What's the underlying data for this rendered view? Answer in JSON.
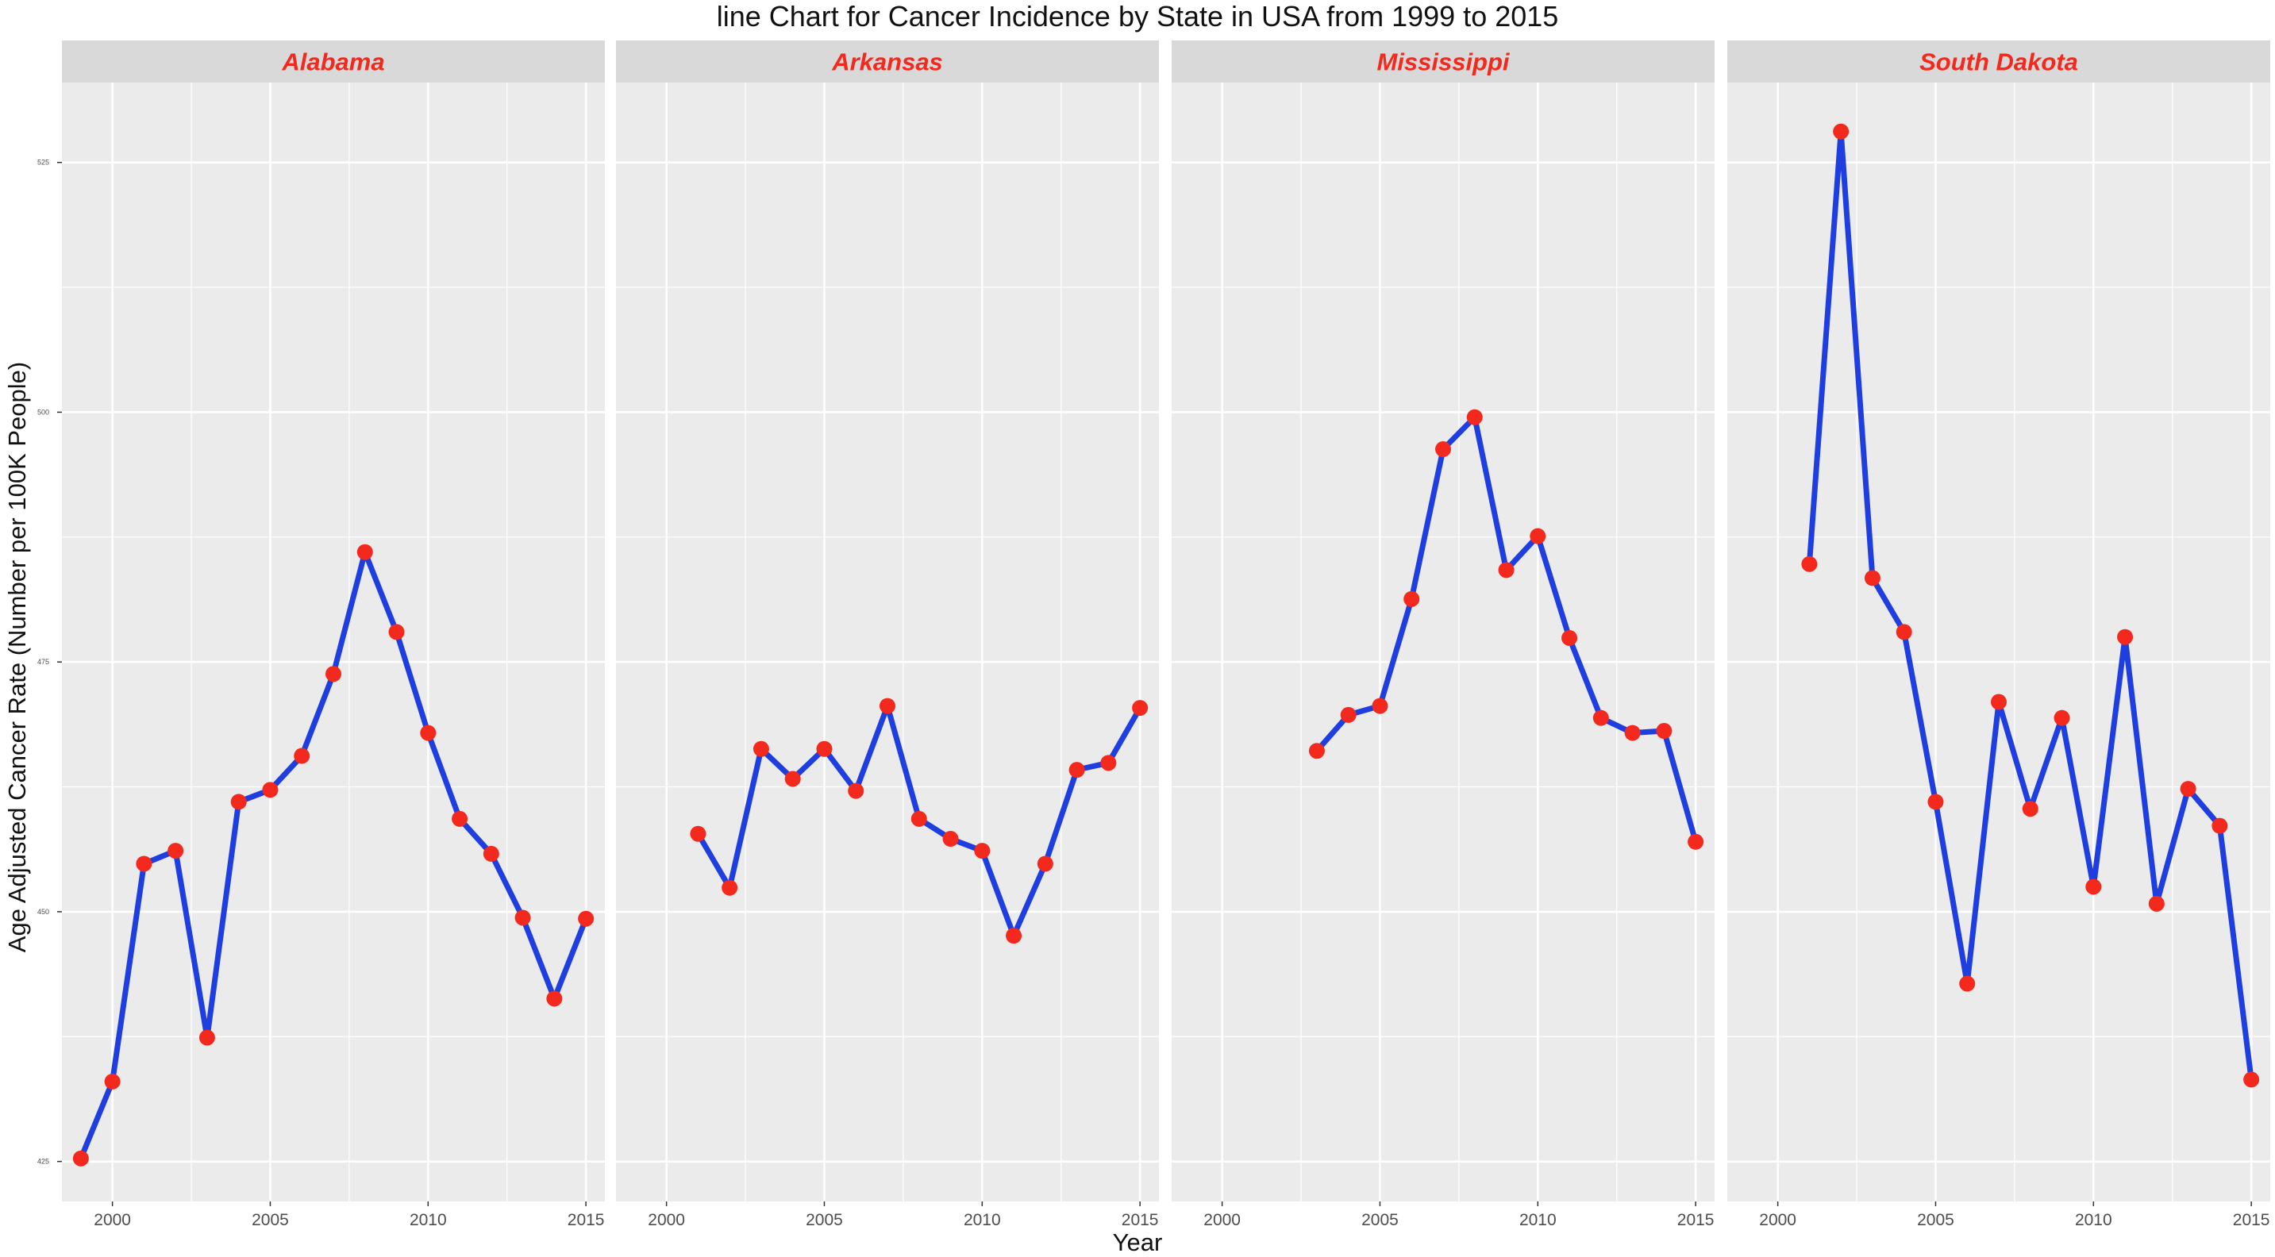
{
  "chart_data": {
    "type": "line",
    "title": "line Chart for Cancer Incidence by State in USA from 1999 to 2015",
    "xlabel": "Year",
    "ylabel": "Age Adjusted Cancer Rate (Number per 100K People)",
    "xlim": [
      1998.4,
      2015.6
    ],
    "ylim": [
      421,
      533
    ],
    "x_ticks": [
      "2000",
      "2005",
      "2010",
      "2015"
    ],
    "y_ticks": [
      "425",
      "450",
      "475",
      "500",
      "525"
    ],
    "grid": true,
    "legend": "none",
    "colors": {
      "line": "#1f3ee0",
      "point": "#f4291e",
      "strip_text": "#f4291e",
      "strip_bg": "#d9d9d9",
      "panel_bg": "#ebebeb",
      "grid": "#ffffff"
    },
    "panels": [
      {
        "name": "Alabama",
        "x": [
          1999,
          2000,
          2001,
          2002,
          2003,
          2004,
          2005,
          2006,
          2007,
          2008,
          2009,
          2010,
          2011,
          2012,
          2013,
          2014,
          2015
        ],
        "y": [
          425.3,
          433,
          454.8,
          456.1,
          437.4,
          461,
          462.2,
          465.6,
          473.8,
          486,
          478,
          467.9,
          459.3,
          455.8,
          449.4,
          441.3,
          449.3
        ]
      },
      {
        "name": "Arkansas",
        "x": [
          2001,
          2002,
          2003,
          2004,
          2005,
          2006,
          2007,
          2008,
          2009,
          2010,
          2011,
          2012,
          2013,
          2014,
          2015
        ],
        "y": [
          457.8,
          452.4,
          466.3,
          463.3,
          466.3,
          462.1,
          470.6,
          459.3,
          457.3,
          456.1,
          447.6,
          454.8,
          464.2,
          464.9,
          470.4
        ]
      },
      {
        "name": "Mississippi",
        "x": [
          2003,
          2004,
          2005,
          2006,
          2007,
          2008,
          2009,
          2010,
          2011,
          2012,
          2013,
          2014,
          2015
        ],
        "y": [
          466.1,
          469.7,
          470.6,
          481.3,
          496.3,
          499.5,
          484.2,
          487.6,
          477.4,
          469.4,
          467.9,
          468.1,
          457
        ]
      },
      {
        "name": "South Dakota",
        "x": [
          2001,
          2002,
          2003,
          2004,
          2005,
          2006,
          2007,
          2008,
          2009,
          2010,
          2011,
          2012,
          2013,
          2014,
          2015
        ],
        "y": [
          484.8,
          528.1,
          483.4,
          478,
          461,
          442.8,
          471,
          460.3,
          469.4,
          452.5,
          477.5,
          450.8,
          462.3,
          458.6,
          433.2
        ]
      }
    ]
  }
}
